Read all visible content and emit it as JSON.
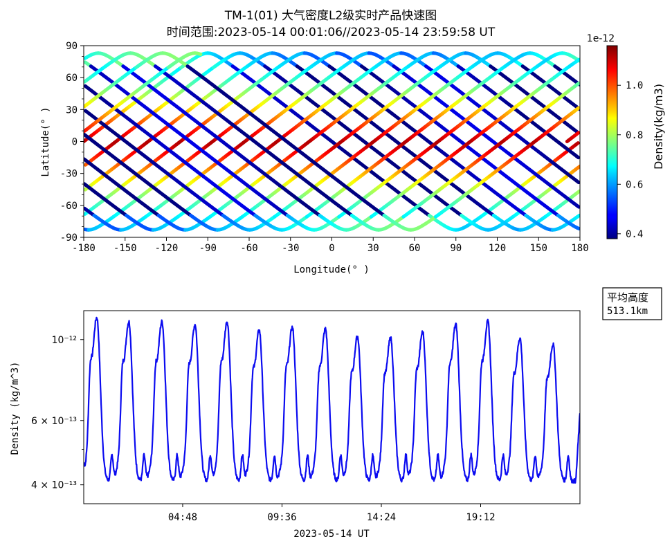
{
  "figure": {
    "title_line1": "TM-1(01) 大气密度L2级实时产品快速图",
    "title_line2": "时间范围:2023-05-14 00:01:06//2023-05-14 23:59:58 UT"
  },
  "chart_data": [
    {
      "type": "scatter",
      "description_role": "ground-track map colored by density",
      "xlabel": "Longitude(° )",
      "ylabel": "Latitude(° )",
      "xlim": [
        -180,
        180
      ],
      "ylim": [
        -90,
        90
      ],
      "xticks": [
        "-180",
        "-150",
        "-120",
        "-90",
        "-60",
        "-30",
        "0",
        "30",
        "60",
        "90",
        "120",
        "150",
        "180"
      ],
      "yticks": [
        "-90",
        "-60",
        "-30",
        "0",
        "30",
        "60",
        "90"
      ],
      "orbit": {
        "inclination_deg": 83,
        "passes": 16,
        "final_pass_end_longitude": -13,
        "final_pass_end_latitude": 10
      },
      "colorbar": {
        "label": "Density(kg/m3)",
        "offset_label": "1e-12",
        "range": [
          0.38,
          1.16
        ],
        "ticks": [
          "0.4",
          "0.6",
          "0.8",
          "1.0"
        ],
        "tick_values": [
          0.4,
          0.6,
          0.8,
          1.0
        ],
        "colormap": "jet"
      },
      "grid": false
    },
    {
      "type": "line",
      "description_role": "density time series",
      "xlabel": "2023-05-14 UT",
      "ylabel": "Density (kg/m^3)",
      "x_range": [
        "2023-05-14 00:01:06",
        "2023-05-14 23:59:58"
      ],
      "xticks": [
        "04:48",
        "09:36",
        "14:24",
        "19:12"
      ],
      "xtick_hours": [
        4.8,
        9.6,
        14.4,
        19.2
      ],
      "yscale": "log",
      "ylim": [
        3.55e-13,
        1.2e-12
      ],
      "ytick_values": [
        4e-13,
        6e-13,
        1e-12
      ],
      "yticks": [
        "4 × 10⁻¹³",
        "6 × 10⁻¹³",
        "10⁻¹²"
      ],
      "line_color": "#0b0bf0",
      "series": [
        {
          "values_at_peaks": [
            {
              "hour": 0.65,
              "value": 1.15e-12
            },
            {
              "hour": 2.2,
              "value": 1.12e-12
            },
            {
              "hour": 3.8,
              "value": 1.12e-12
            },
            {
              "hour": 5.4,
              "value": 1.1e-12
            },
            {
              "hour": 6.95,
              "value": 1.12e-12
            },
            {
              "hour": 8.5,
              "value": 1.06e-12
            },
            {
              "hour": 10.1,
              "value": 1.08e-12
            },
            {
              "hour": 11.7,
              "value": 1.07e-12
            },
            {
              "hour": 13.25,
              "value": 1.02e-12
            },
            {
              "hour": 14.85,
              "value": 1.01e-12
            },
            {
              "hour": 16.4,
              "value": 1.05e-12
            },
            {
              "hour": 18.0,
              "value": 1.1e-12
            },
            {
              "hour": 19.55,
              "value": 1.12e-12
            },
            {
              "hour": 21.1,
              "value": 1.01e-12
            },
            {
              "hour": 22.7,
              "value": 9.7e-13
            }
          ],
          "trough_level": 4.1e-13,
          "secondary_hump_level": 4.8e-13,
          "start_value": 4.6e-13,
          "end_value": 6.3e-13
        }
      ]
    }
  ],
  "annotation": {
    "label": "平均高度",
    "value": "513.1km"
  }
}
